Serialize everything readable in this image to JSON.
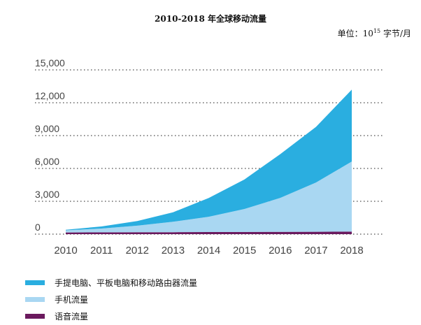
{
  "title": "2010-2018 年全球移动流量",
  "unit": {
    "prefix": "单位：10",
    "exponent": "15",
    "suffix": " 字节/月"
  },
  "colors": {
    "laptop": "#2aaee0",
    "phone": "#a9d7f2",
    "voice": "#6b1a5e",
    "grid": "#666666",
    "text": "#444444"
  },
  "chart_data": {
    "type": "area",
    "stacked": true,
    "title": "2010-2018 年全球移动流量",
    "x": [
      "2010",
      "2011",
      "2012",
      "2013",
      "2014",
      "2015",
      "2016",
      "2017",
      "2018"
    ],
    "ylim": [
      0,
      15000
    ],
    "yticks": [
      "0",
      "3,000",
      "6,000",
      "9,000",
      "12,000",
      "15,000"
    ],
    "grid": "horizontal dotted",
    "legend_position": "bottom-left",
    "series": [
      {
        "name": "语音流量",
        "color": "#6b1a5e",
        "values": [
          150,
          160,
          170,
          180,
          190,
          200,
          210,
          220,
          230
        ]
      },
      {
        "name": "手机流量",
        "color": "#a9d7f2",
        "values": [
          200,
          350,
          600,
          950,
          1400,
          2100,
          3100,
          4500,
          6400
        ]
      },
      {
        "name": "手提电脑、平板电脑和移动路由器流量",
        "color": "#2aaee0",
        "values": [
          50,
          190,
          430,
          870,
          1710,
          2700,
          4000,
          5080,
          6570
        ]
      }
    ]
  },
  "legend": [
    {
      "label": "手提电脑、平板电脑和移动路由器流量",
      "color": "#2aaee0"
    },
    {
      "label": "手机流量",
      "color": "#a9d7f2"
    },
    {
      "label": "语音流量",
      "color": "#6b1a5e"
    }
  ]
}
